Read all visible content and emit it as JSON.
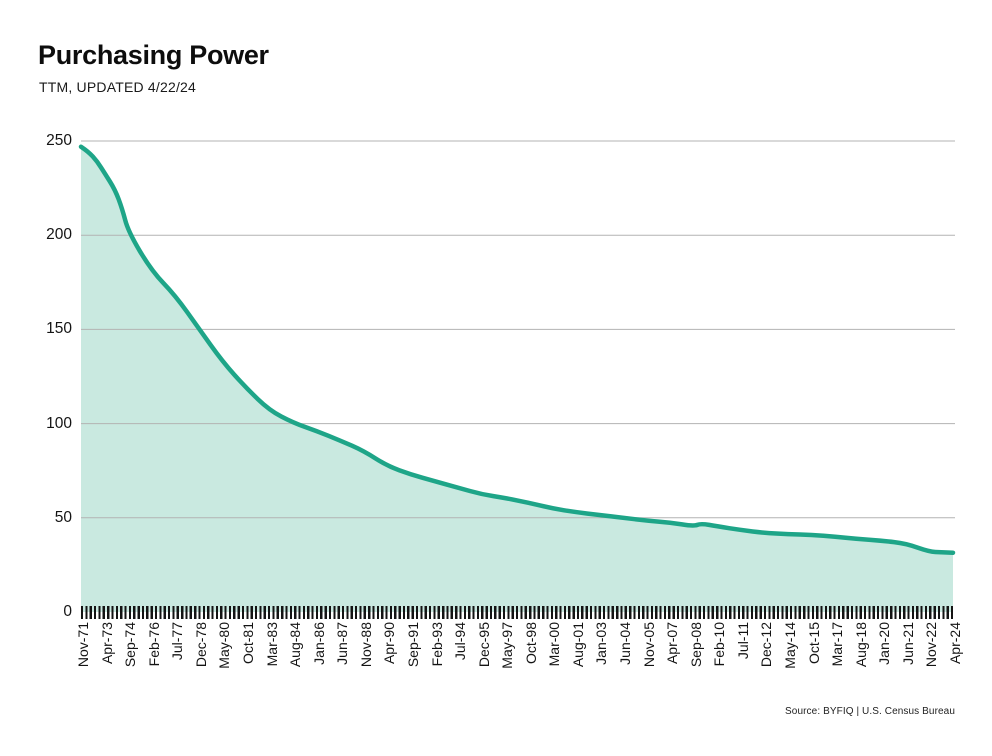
{
  "header": {
    "title": "Purchasing Power",
    "subtitle": "TTM, UPDATED 4/22/24"
  },
  "footer": {
    "source": "Source: BYFIQ | U.S. Census Bureau"
  },
  "chart_data": {
    "type": "area",
    "title": "Purchasing Power",
    "subtitle": "TTM, UPDATED 4/22/24",
    "xlabel": "",
    "ylabel": "",
    "ylim": [
      0,
      250
    ],
    "yticks": [
      0,
      50,
      100,
      150,
      200,
      250
    ],
    "grid": "horizontal",
    "legend": "none",
    "xlabel_rotation": -90,
    "categories": [
      "Nov-71",
      "Apr-73",
      "Sep-74",
      "Feb-76",
      "Jul-77",
      "Dec-78",
      "May-80",
      "Oct-81",
      "Mar-83",
      "Aug-84",
      "Jan-86",
      "Jun-87",
      "Nov-88",
      "Apr-90",
      "Sep-91",
      "Feb-93",
      "Jul-94",
      "Dec-95",
      "May-97",
      "Oct-98",
      "Mar-00",
      "Aug-01",
      "Jan-03",
      "Jun-04",
      "Nov-05",
      "Apr-07",
      "Sep-08",
      "Feb-10",
      "Jul-11",
      "Dec-12",
      "May-14",
      "Oct-15",
      "Mar-17",
      "Aug-18",
      "Jan-20",
      "Jun-21",
      "Nov-22",
      "Apr-24"
    ],
    "values": [
      247,
      233,
      202,
      181,
      168,
      150.5,
      133,
      119,
      107,
      100.5,
      96,
      91,
      85.5,
      77.5,
      73,
      69.5,
      66,
      62.5,
      60.5,
      58,
      55,
      53,
      51.5,
      50,
      48.5,
      47.5,
      45.5,
      45.5,
      43.5,
      42,
      41.3,
      41,
      40,
      38.7,
      37.8,
      36.4,
      32,
      31.5
    ],
    "extra_points": [
      {
        "i": 0.3,
        "v": 244.5
      },
      {
        "i": 0.7,
        "v": 239
      },
      {
        "i": 1.45,
        "v": 224
      },
      {
        "i": 1.75,
        "v": 214
      },
      {
        "i": 26.3,
        "v": 47.0
      },
      {
        "i": 36.5,
        "v": 31.7
      }
    ],
    "colors": {
      "line": "#1ea588",
      "fill": "#c9e9e0",
      "grid": "#b3b3b3",
      "tick": "#141414",
      "text": "#111111"
    }
  }
}
